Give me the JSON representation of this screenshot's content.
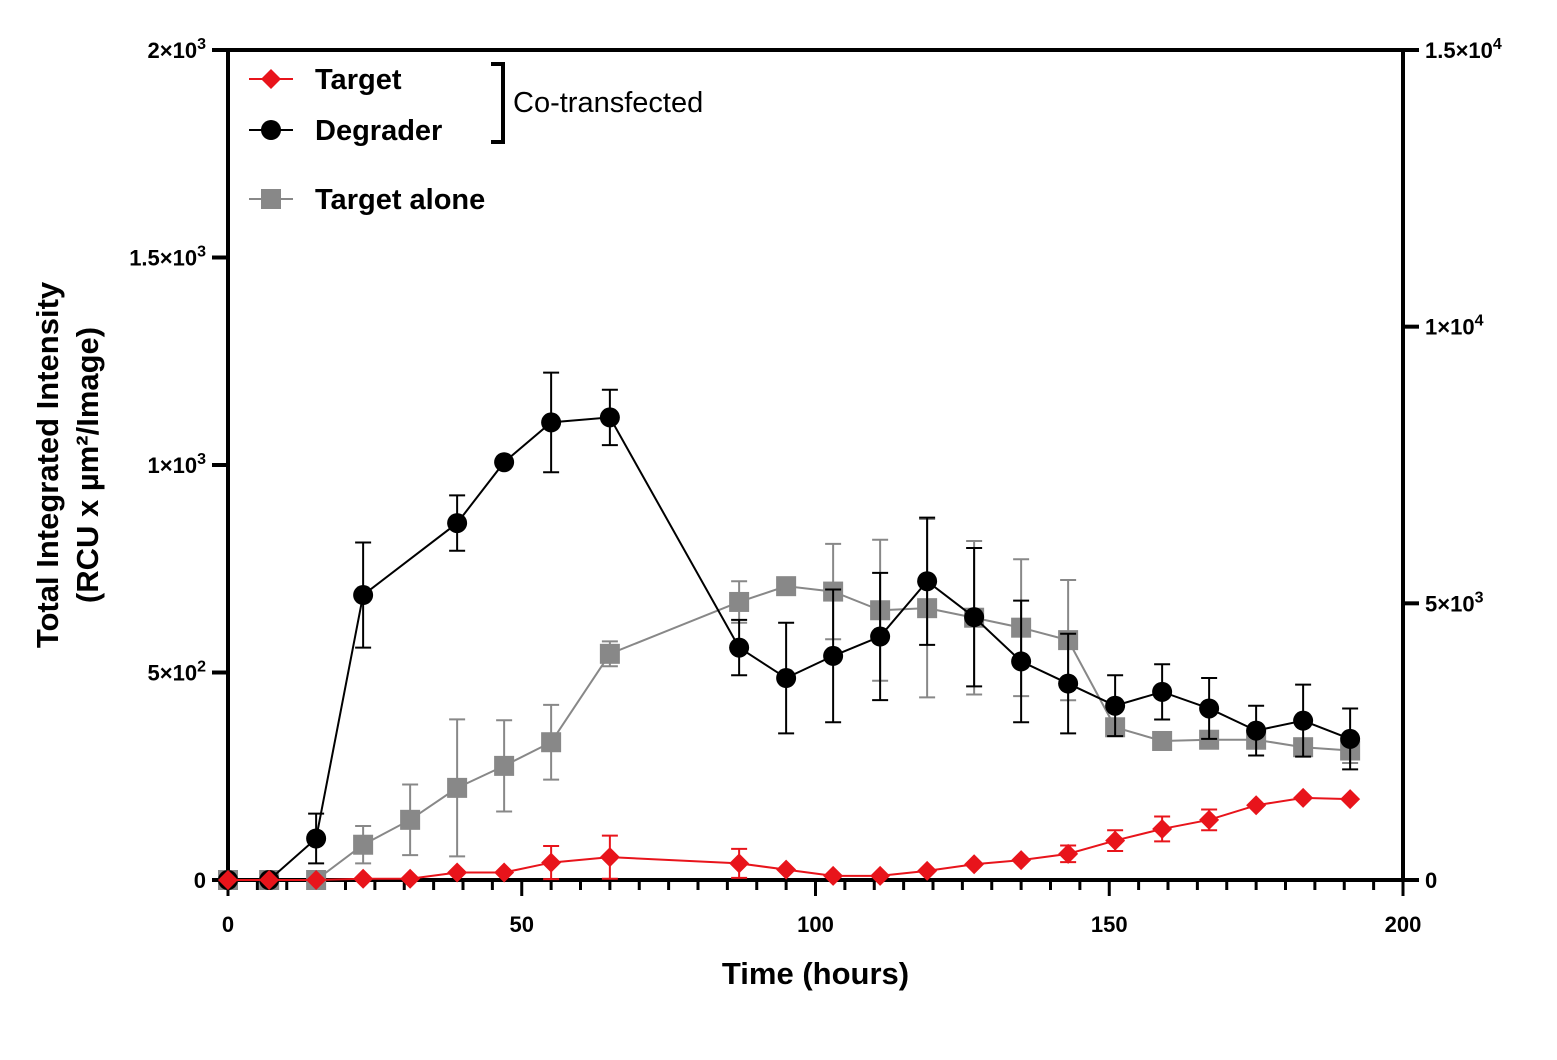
{
  "chart_data": {
    "type": "line",
    "xlabel": "Time (hours)",
    "ylabel_line1": "Total Integrated Intensity",
    "ylabel_line2": "(RCU x µm²/Image)",
    "xlim": [
      0,
      200
    ],
    "ylim_left": [
      0,
      2000
    ],
    "ylim_right": [
      0,
      15000
    ],
    "x_ticks": [
      0,
      50,
      100,
      150,
      200
    ],
    "x_tick_labels": [
      "0",
      "50",
      "100",
      "150",
      "200"
    ],
    "y_left_ticks": [
      0,
      500,
      1000,
      1500,
      2000
    ],
    "y_left_tick_labels": [
      {
        "base": "0",
        "exp": ""
      },
      {
        "base": "5×10",
        "exp": "2"
      },
      {
        "base": "1×10",
        "exp": "3"
      },
      {
        "base": "1.5×10",
        "exp": "3"
      },
      {
        "base": "2×10",
        "exp": "3"
      }
    ],
    "y_right_ticks": [
      0,
      5000,
      10000,
      15000
    ],
    "y_right_tick_labels": [
      {
        "base": "0",
        "exp": ""
      },
      {
        "base": "5×10",
        "exp": "3"
      },
      {
        "base": "1×10",
        "exp": "4"
      },
      {
        "base": "1.5×10",
        "exp": "4"
      }
    ],
    "grid": false,
    "legend_position": "top-left",
    "bracket_label": "Co-transfected",
    "series": [
      {
        "name": "Target",
        "color": "#e8141b",
        "marker": "diamond",
        "axis": "left",
        "x": [
          0,
          7,
          15,
          23,
          31,
          39,
          47,
          55,
          65,
          87,
          95,
          103,
          111,
          119,
          127,
          135,
          143,
          151,
          159,
          167,
          175,
          183,
          191
        ],
        "y": [
          0,
          0,
          0,
          3,
          3,
          18,
          18,
          42,
          55,
          40,
          25,
          10,
          10,
          22,
          38,
          48,
          63,
          95,
          123,
          145,
          180,
          198,
          195
        ],
        "err": [
          0,
          0,
          0,
          0,
          0,
          0,
          0,
          40,
          52,
          35,
          0,
          0,
          0,
          0,
          0,
          0,
          20,
          25,
          30,
          25,
          0,
          0,
          0
        ]
      },
      {
        "name": "Degrader",
        "color": "#000000",
        "marker": "circle",
        "axis": "right",
        "x": [
          0,
          7,
          15,
          23,
          39,
          47,
          55,
          65,
          87,
          95,
          103,
          111,
          119,
          127,
          135,
          143,
          151,
          159,
          167,
          175,
          183,
          191
        ],
        "y": [
          0,
          0,
          750,
          5150,
          6450,
          7550,
          8270,
          8360,
          4200,
          3650,
          4050,
          4400,
          5400,
          4750,
          3950,
          3550,
          3150,
          3400,
          3100,
          2700,
          2880,
          2550
        ],
        "err": [
          0,
          0,
          450,
          950,
          500,
          0,
          900,
          500,
          500,
          1000,
          1200,
          1150,
          1150,
          1250,
          1100,
          900,
          550,
          500,
          550,
          450,
          650,
          550
        ]
      },
      {
        "name": "Target alone",
        "color": "#888888",
        "marker": "square",
        "axis": "left",
        "x": [
          0,
          7,
          15,
          23,
          31,
          39,
          47,
          55,
          65,
          87,
          95,
          103,
          111,
          119,
          127,
          135,
          143,
          151,
          159,
          167,
          175,
          183,
          191
        ],
        "y": [
          0,
          0,
          0,
          85,
          145,
          222,
          275,
          332,
          545,
          670,
          708,
          695,
          650,
          655,
          632,
          608,
          578,
          368,
          335,
          338,
          338,
          320,
          312
        ],
        "err": [
          0,
          0,
          0,
          45,
          85,
          165,
          110,
          90,
          30,
          50,
          0,
          115,
          170,
          215,
          185,
          165,
          145,
          20,
          0,
          0,
          0,
          20,
          30
        ]
      }
    ]
  }
}
